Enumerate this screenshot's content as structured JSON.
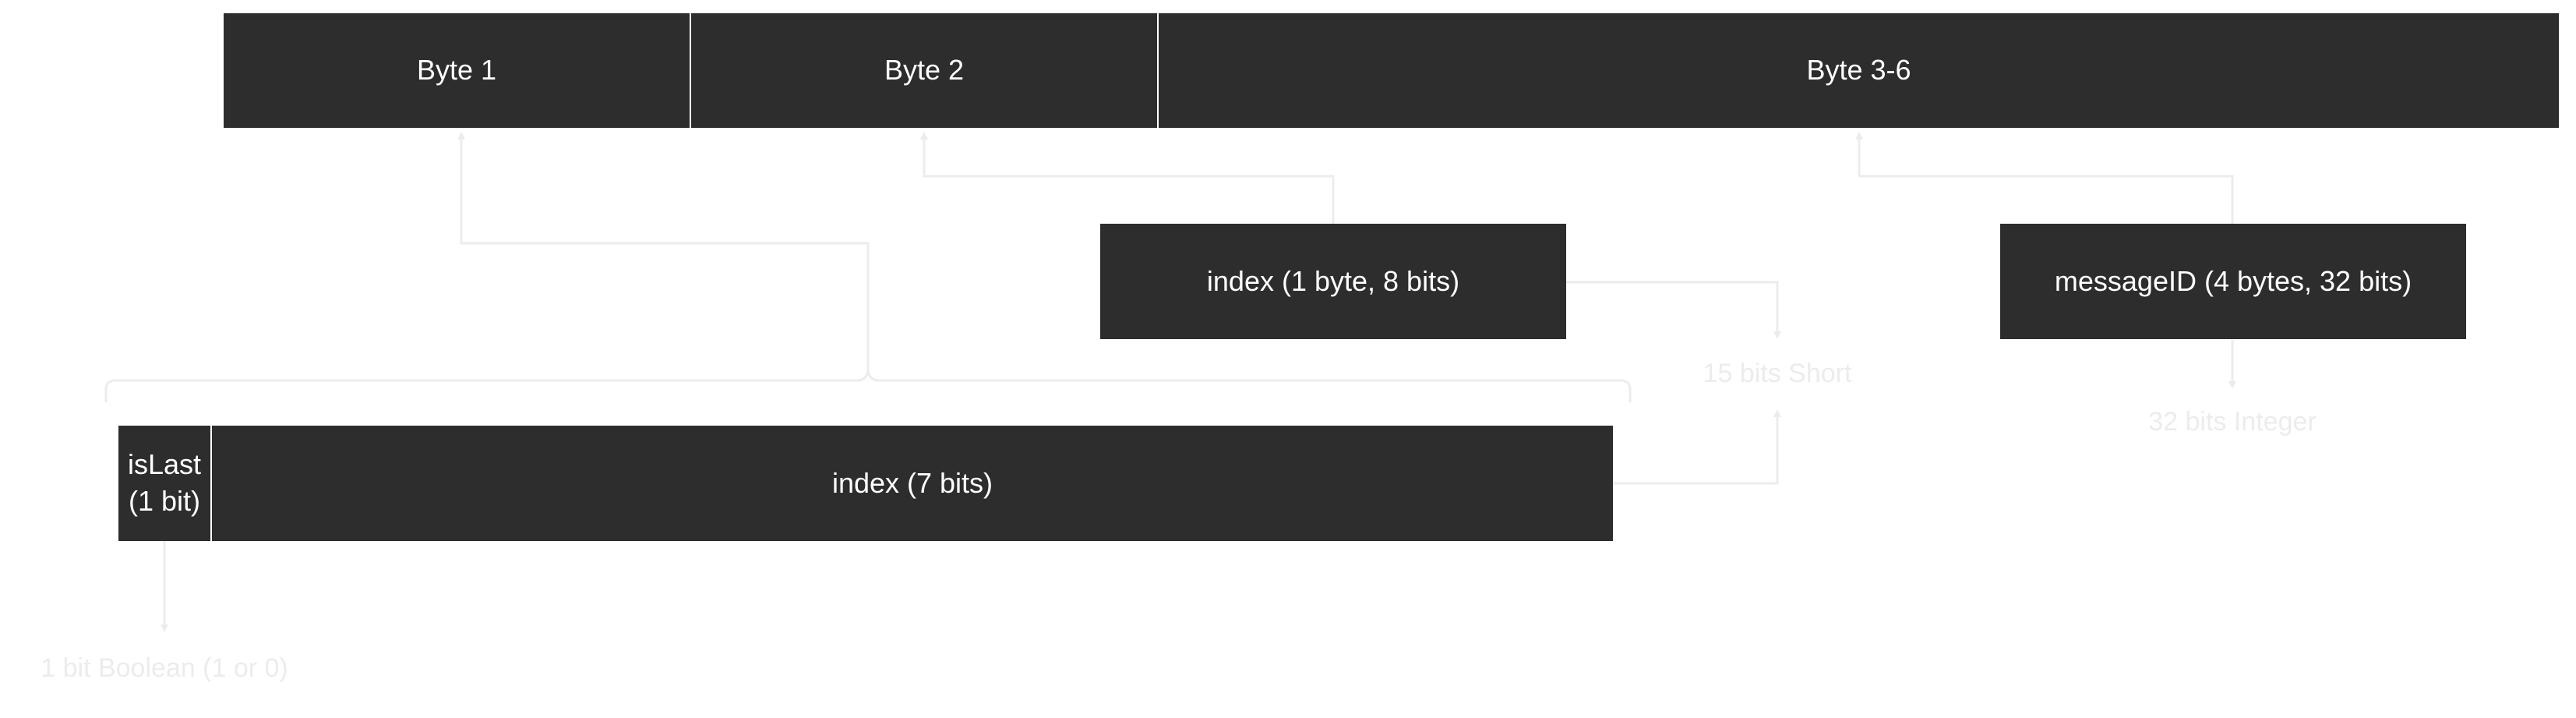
{
  "bytes": {
    "byte1": "Byte 1",
    "byte2": "Byte 2",
    "byte36": "Byte 3-6"
  },
  "fields": {
    "index_byte": "index (1 byte, 8 bits)",
    "message_id": "messageID (4 bytes, 32 bits)",
    "is_last_line1": "isLast",
    "is_last_line2": "(1 bit)",
    "index_bits": "index (7 bits)"
  },
  "types": {
    "short": "15 bits Short",
    "integer": "32 bits Integer",
    "boolean": "1 bit Boolean (1 or 0)"
  },
  "colors": {
    "box": "#2d2d2d",
    "text": "#ffffff",
    "connector": "#ececec"
  }
}
